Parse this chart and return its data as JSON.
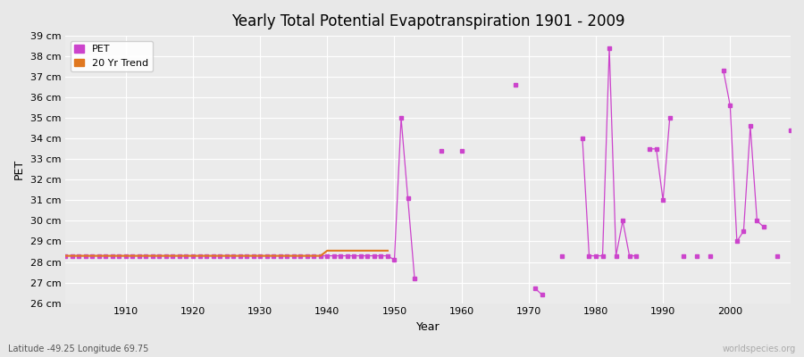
{
  "title": "Yearly Total Potential Evapotranspiration 1901 - 2009",
  "xlabel": "Year",
  "ylabel": "PET",
  "bottom_left_label": "Latitude -49.25 Longitude 69.75",
  "bottom_right_label": "worldspecies.org",
  "ylim": [
    26,
    39
  ],
  "ytick_labels": [
    "26 cm",
    "27 cm",
    "28 cm",
    "29 cm",
    "30 cm",
    "31 cm",
    "32 cm",
    "33 cm",
    "34 cm",
    "35 cm",
    "36 cm",
    "37 cm",
    "38 cm",
    "39 cm"
  ],
  "ytick_values": [
    26,
    27,
    28,
    29,
    30,
    31,
    32,
    33,
    34,
    35,
    36,
    37,
    38,
    39
  ],
  "xlim": [
    1901,
    2009
  ],
  "background_color": "#e8e8e8",
  "plot_bg_color": "#ebebeb",
  "grid_color": "#ffffff",
  "pet_color": "#cc44cc",
  "trend_color": "#e07820",
  "pet_data": {
    "1901": 28.3,
    "1902": 28.3,
    "1903": 28.3,
    "1904": 28.3,
    "1905": 28.3,
    "1906": 28.3,
    "1907": 28.3,
    "1908": 28.3,
    "1909": 28.3,
    "1910": 28.3,
    "1911": 28.3,
    "1912": 28.3,
    "1913": 28.3,
    "1914": 28.3,
    "1915": 28.3,
    "1916": 28.3,
    "1917": 28.3,
    "1918": 28.3,
    "1919": 28.3,
    "1920": 28.3,
    "1921": 28.3,
    "1922": 28.3,
    "1923": 28.3,
    "1924": 28.3,
    "1925": 28.3,
    "1926": 28.3,
    "1927": 28.3,
    "1928": 28.3,
    "1929": 28.3,
    "1930": 28.3,
    "1931": 28.3,
    "1932": 28.3,
    "1933": 28.3,
    "1934": 28.3,
    "1935": 28.3,
    "1936": 28.3,
    "1937": 28.3,
    "1938": 28.3,
    "1939": 28.3,
    "1940": 28.3,
    "1941": 28.3,
    "1942": 28.3,
    "1943": 28.3,
    "1944": 28.3,
    "1945": 28.3,
    "1946": 28.3,
    "1947": 28.3,
    "1948": 28.3,
    "1949": 28.3,
    "1950": 28.1,
    "1951": 35.0,
    "1952": 31.1,
    "1953": 27.2,
    "1957": 33.4,
    "1960": 33.4,
    "1968": 36.6,
    "1971": 26.7,
    "1972": 26.4,
    "1975": 28.3,
    "1978": 34.0,
    "1979": 28.3,
    "1980": 28.3,
    "1981": 28.3,
    "1982": 38.4,
    "1983": 28.3,
    "1984": 30.0,
    "1985": 28.3,
    "1986": 28.3,
    "1988": 33.5,
    "1989": 33.5,
    "1990": 31.0,
    "1991": 35.0,
    "1993": 28.3,
    "1995": 28.3,
    "1997": 28.3,
    "1999": 37.3,
    "2000": 35.6,
    "2001": 29.0,
    "2002": 29.5,
    "2003": 34.6,
    "2004": 30.0,
    "2005": 29.7,
    "2007": 28.3,
    "2009": 34.4
  },
  "trend_data": {
    "1901": 28.3,
    "1902": 28.3,
    "1903": 28.3,
    "1904": 28.3,
    "1905": 28.3,
    "1906": 28.3,
    "1907": 28.3,
    "1908": 28.3,
    "1909": 28.3,
    "1910": 28.3,
    "1911": 28.3,
    "1912": 28.3,
    "1913": 28.3,
    "1914": 28.3,
    "1915": 28.3,
    "1916": 28.3,
    "1917": 28.3,
    "1918": 28.3,
    "1919": 28.3,
    "1920": 28.3,
    "1921": 28.3,
    "1922": 28.3,
    "1923": 28.3,
    "1924": 28.3,
    "1925": 28.3,
    "1926": 28.3,
    "1927": 28.3,
    "1928": 28.3,
    "1929": 28.3,
    "1930": 28.3,
    "1931": 28.3,
    "1932": 28.3,
    "1933": 28.3,
    "1934": 28.3,
    "1935": 28.3,
    "1936": 28.3,
    "1937": 28.3,
    "1938": 28.3,
    "1939": 28.3,
    "1940": 28.55,
    "1941": 28.55,
    "1942": 28.55,
    "1943": 28.55,
    "1944": 28.55,
    "1945": 28.55,
    "1946": 28.55,
    "1947": 28.55,
    "1948": 28.55,
    "1949": 28.55
  }
}
